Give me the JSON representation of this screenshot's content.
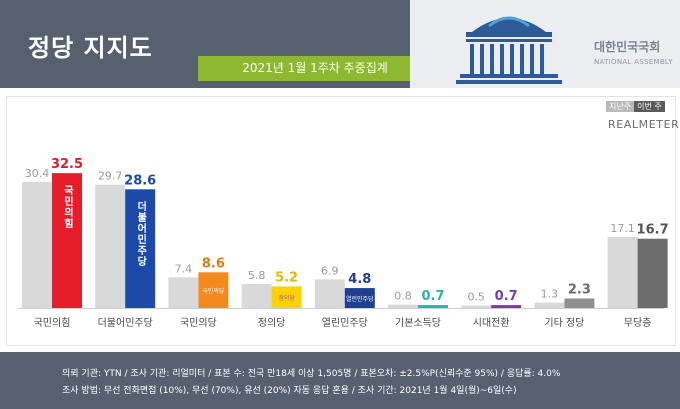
{
  "header": {
    "title": "정당 지지도",
    "subtitle": "2021년 1월 1주차 주중집계",
    "logo_text": "대한민국국회",
    "logo_sub": "NATIONAL ASSEMBLY"
  },
  "legend": {
    "prev_label": "지난주",
    "cur_label": "이번 주",
    "brand": "REALMETER"
  },
  "chart_data": {
    "type": "bar",
    "categories": [
      "국민의힘",
      "더불어민주당",
      "국민의당",
      "정의당",
      "열린민주당",
      "기본소득당",
      "시대전환",
      "기타 정당",
      "무당층"
    ],
    "series": [
      {
        "name": "지난주",
        "values": [
          30.4,
          29.7,
          7.4,
          5.8,
          6.9,
          0.8,
          0.5,
          1.3,
          17.1
        ]
      },
      {
        "name": "이번 주",
        "values": [
          32.5,
          28.6,
          8.6,
          5.2,
          4.8,
          0.7,
          0.7,
          2.3,
          16.7
        ]
      }
    ],
    "bar_labels": [
      "국민의힘",
      "더불어민주당",
      "국민의당",
      "정의당",
      "열린민주당",
      "",
      "",
      "",
      ""
    ],
    "current_colors": [
      "#e61e2b",
      "#1b4aa8",
      "#f28a1e",
      "#f7d300",
      "#1e3f94",
      "#2ab2a6",
      "#7b3aa6",
      "#909090",
      "#6d6d6d"
    ],
    "label_colors": [
      "#d91e2b",
      "#1b4aa8",
      "#e07a12",
      "#e0b800",
      "#1e3f94",
      "#2ab2a6",
      "#7b3aa6",
      "#6b6b6b",
      "#555555"
    ],
    "previous_color": "#d9d9d9",
    "ylim": [
      0,
      40
    ],
    "grid": false,
    "legend": "top-right"
  },
  "footer": {
    "line1": "의뢰 기관: YTN / 조사 기관: 리얼미터 / 표본 수: 전국 만18세 이상 1,505명 / 표본오차: ±2.5%P(신뢰수준 95%) / 응답률: 4.0%",
    "line2": "조사 방법: 무선 전화면접 (10%), 무선 (70%), 유선 (20%) 자동 응답 혼용 / 조사 기간: 2021년 1월 4일(월)~6일(수)"
  }
}
